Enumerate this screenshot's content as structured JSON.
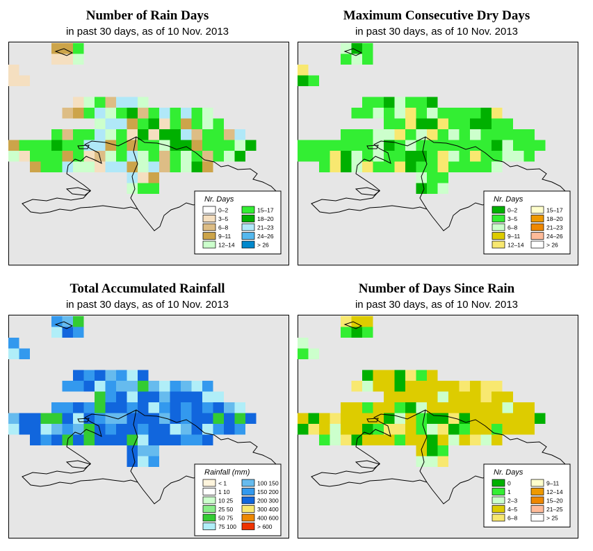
{
  "panels": [
    {
      "title": "Number of Rain Days",
      "subtitle": "in past 30 days, as of  10 Nov. 2013",
      "legend_title": "Nr. Days",
      "legend": [
        {
          "label": "0–2",
          "color": "#ffffff"
        },
        {
          "label": "3–5",
          "color": "#f5dfc0"
        },
        {
          "label": "6–8",
          "color": "#ddbd85"
        },
        {
          "label": "9–11",
          "color": "#cca44a"
        },
        {
          "label": "12–14",
          "color": "#ccffcc"
        },
        {
          "label": "15–17",
          "color": "#33ee33"
        },
        {
          "label": "18–20",
          "color": "#00b000"
        },
        {
          "label": "21–23",
          "color": "#b0e8f8"
        },
        {
          "label": "24–26",
          "color": "#55b8ee"
        },
        {
          "label": "> 26",
          "color": "#0088cc"
        }
      ],
      "palette": [
        "#33ee33",
        "#33ee33",
        "#ccffcc",
        "#cca44a",
        "#ddbd85",
        "#00b000",
        "#b0e8f8",
        "#f5dfc0"
      ]
    },
    {
      "title": "Maximum Consecutive Dry Days",
      "subtitle": "in past 30 days, as of  10 Nov. 2013",
      "legend_title": "Nr. Days",
      "legend": [
        {
          "label": "0–2",
          "color": "#00b000"
        },
        {
          "label": "3–5",
          "color": "#33ee33"
        },
        {
          "label": "6–8",
          "color": "#ccffcc"
        },
        {
          "label": "9–11",
          "color": "#ddcc00"
        },
        {
          "label": "12–14",
          "color": "#f8e870"
        },
        {
          "label": "15–17",
          "color": "#ffffcc"
        },
        {
          "label": "18–20",
          "color": "#ee9900"
        },
        {
          "label": "21–23",
          "color": "#ee8800"
        },
        {
          "label": "24–26",
          "color": "#ffbb99"
        },
        {
          "label": "> 26",
          "color": "#ffffff"
        }
      ],
      "palette": [
        "#33ee33",
        "#33ee33",
        "#33ee33",
        "#ccffcc",
        "#00b000",
        "#f8e870",
        "#33ee33",
        "#ccffcc"
      ]
    },
    {
      "title": "Total Accumulated Rainfall",
      "subtitle": "in past 30 days, as of  10 Nov. 2013",
      "legend_title": "Rainfall (mm)",
      "legend": [
        {
          "label": "< 1",
          "color": "#fff5dd"
        },
        {
          "label": "1    10",
          "color": "#ffffff"
        },
        {
          "label": "10    25",
          "color": "#ccffcc"
        },
        {
          "label": "25    50",
          "color": "#88ee88"
        },
        {
          "label": "50    75",
          "color": "#33cc33"
        },
        {
          "label": "75   100",
          "color": "#b0eef8"
        },
        {
          "label": "100   150",
          "color": "#66bbee"
        },
        {
          "label": "150   200",
          "color": "#3399ee"
        },
        {
          "label": "200   300",
          "color": "#1166dd"
        },
        {
          "label": "300   400",
          "color": "#f8e870"
        },
        {
          "label": "400   600",
          "color": "#ee8800"
        },
        {
          "label": "> 600",
          "color": "#ee3300"
        }
      ],
      "palette": [
        "#1166dd",
        "#1166dd",
        "#3399ee",
        "#66bbee",
        "#b0eef8",
        "#1166dd",
        "#33cc33",
        "#3399ee"
      ]
    },
    {
      "title": "Number of Days Since Rain",
      "subtitle": "in past 30 days, as of  10 Nov. 2013",
      "legend_title": "Nr. Days",
      "legend": [
        {
          "label": "0",
          "color": "#00b000"
        },
        {
          "label": "1",
          "color": "#33ee33"
        },
        {
          "label": "2–3",
          "color": "#ccffcc"
        },
        {
          "label": "4–5",
          "color": "#ddcc00"
        },
        {
          "label": "6–8",
          "color": "#f8e870"
        },
        {
          "label": "9–11",
          "color": "#ffffcc"
        },
        {
          "label": "12–14",
          "color": "#ee9900"
        },
        {
          "label": "15–20",
          "color": "#ee8800"
        },
        {
          "label": "21–25",
          "color": "#ffbb99"
        },
        {
          "label": "> 25",
          "color": "#ffffff"
        }
      ],
      "palette": [
        "#ddcc00",
        "#ddcc00",
        "#ddcc00",
        "#ddcc00",
        "#ccffcc",
        "#33ee33",
        "#f8e870",
        "#00b000"
      ]
    }
  ]
}
